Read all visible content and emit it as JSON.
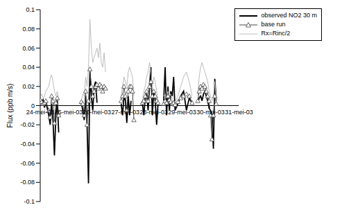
{
  "chart_data": {
    "type": "line",
    "y_label": "Flux (ppb m/s)",
    "grid": false,
    "legend": "top-right",
    "xlim": [
      24,
      31
    ],
    "xticks": [
      {
        "value": 24,
        "label": "24-mei-03"
      },
      {
        "value": 25,
        "label": "25-mei-03"
      },
      {
        "value": 26,
        "label": "26-mei-03"
      },
      {
        "value": 27,
        "label": "27-mei-03"
      },
      {
        "value": 28,
        "label": "28-mei-03"
      },
      {
        "value": 29,
        "label": "29-mei-03"
      },
      {
        "value": 30,
        "label": "30-mei-03"
      },
      {
        "value": 31,
        "label": "31-mei-03"
      }
    ],
    "ylim": [
      -0.1,
      0.1
    ],
    "yticks": [
      -0.1,
      -0.08,
      -0.06,
      -0.04,
      -0.02,
      0,
      0.02,
      0.04,
      0.06,
      0.08,
      0.1
    ],
    "x": [
      24.0,
      24.05,
      24.1,
      24.15,
      24.2,
      24.3,
      24.35,
      24.4,
      24.45,
      24.5,
      24.55,
      24.6,
      24.65,
      24.8,
      25.45,
      25.5,
      25.55,
      25.6,
      25.65,
      25.7,
      25.75,
      25.8,
      25.85,
      25.9,
      25.95,
      26.0,
      26.05,
      26.1,
      26.15,
      26.2,
      26.25,
      26.3,
      26.4,
      26.85,
      26.9,
      26.95,
      27.0,
      27.05,
      27.1,
      27.15,
      27.2,
      27.25,
      27.3,
      27.4,
      27.6,
      27.65,
      27.7,
      27.75,
      27.8,
      27.85,
      27.9,
      27.95,
      28.0,
      28.05,
      28.1,
      28.15,
      28.25,
      28.35,
      28.4,
      28.45,
      28.5,
      28.55,
      28.6,
      28.65,
      28.7,
      28.75,
      28.85,
      28.95,
      29.05,
      29.15,
      29.25,
      29.35,
      29.45,
      29.55,
      29.6,
      29.65,
      29.7,
      29.75,
      29.8,
      29.85,
      29.9,
      29.95,
      30.0,
      30.05,
      30.1,
      30.15,
      30.2
    ],
    "series": [
      {
        "name": "observed NO2 30 m",
        "color": "#000000",
        "marker": "none",
        "line_style": "solid",
        "values": [
          0.005,
          0.003,
          0.006,
          -0.002,
          0.004,
          -0.01,
          -0.02,
          0.002,
          -0.015,
          -0.052,
          -0.01,
          0.005,
          -0.028,
          null,
          0.002,
          -0.005,
          -0.015,
          0.01,
          -0.02,
          -0.081,
          0.035,
          0.01,
          -0.005,
          0.02,
          0.025,
          0.003,
          null,
          null,
          null,
          null,
          null,
          null,
          null,
          0.002,
          -0.01,
          0.01,
          0.005,
          -0.018,
          0.01,
          -0.01,
          0.005,
          null,
          null,
          null,
          0.002,
          -0.01,
          0.008,
          0.012,
          -0.005,
          0.02,
          0.04,
          -0.01,
          0.015,
          0.005,
          -0.02,
          0.002,
          null,
          0.005,
          0.04,
          -0.01,
          0.02,
          -0.005,
          0.015,
          0.01,
          0.03,
          -0.005,
          0.002,
          0.01,
          0.015,
          -0.005,
          0.008,
          0.002,
          null,
          0.003,
          0.008,
          0.01,
          0.005,
          0.012,
          0.015,
          0.01,
          0.005,
          -0.003,
          -0.005,
          -0.01,
          -0.045,
          0.028,
          0.005
        ]
      },
      {
        "name": "base run",
        "color": "#444444",
        "marker": "triangle",
        "line_style": "solid",
        "values": [
          0.006,
          0.004,
          0.002,
          0.003,
          0.005,
          -0.005,
          -0.012,
          0.01,
          0.005,
          -0.018,
          0.003,
          0.008,
          -0.01,
          null,
          0.004,
          0.002,
          -0.01,
          0.015,
          -0.02,
          0.005,
          0.038,
          0.02,
          0.01,
          0.015,
          0.02,
          0.022,
          0.018,
          0.022,
          0.02,
          0.015,
          0.02,
          0.018,
          null,
          0.005,
          0.01,
          0.02,
          0.01,
          -0.005,
          0.015,
          0.02,
          0.02,
          0.015,
          -0.015,
          null,
          0.003,
          0.005,
          0.01,
          0.015,
          0.005,
          0.02,
          0.025,
          0.01,
          0.015,
          0.01,
          0.005,
          0.003,
          null,
          0.002,
          0.005,
          0.003,
          0.01,
          0.006,
          0.004,
          0.002,
          0.003,
          0.001,
          0.004,
          0.008,
          0.01,
          0.012,
          0.01,
          0.003,
          null,
          0.005,
          0.015,
          0.02,
          0.018,
          0.022,
          0.02,
          0.015,
          0.01,
          0.005,
          -0.01,
          -0.035,
          -0.01,
          0.01,
          0.002
        ]
      },
      {
        "name": "Rx=Rinc/2",
        "color": "#bbbbbb",
        "marker": "none",
        "line_style": "solid",
        "values": [
          0.01,
          0.012,
          0.008,
          0.01,
          0.015,
          0.02,
          0.028,
          0.032,
          0.025,
          0.015,
          0.01,
          0.015,
          0.005,
          null,
          0.006,
          0.012,
          0.01,
          0.03,
          0.02,
          0.04,
          0.09,
          0.06,
          0.045,
          0.05,
          0.055,
          0.06,
          0.05,
          0.065,
          0.045,
          0.04,
          0.055,
          0.035,
          null,
          0.01,
          0.02,
          0.03,
          0.025,
          0.02,
          0.035,
          0.04,
          0.035,
          0.03,
          0.01,
          null,
          0.005,
          0.015,
          0.02,
          0.03,
          0.035,
          0.045,
          0.035,
          0.02,
          0.03,
          0.025,
          0.015,
          0.005,
          null,
          0.01,
          0.012,
          0.008,
          0.015,
          0.01,
          0.012,
          0.006,
          0.005,
          0.004,
          0.01,
          0.02,
          0.03,
          0.035,
          0.025,
          0.01,
          null,
          0.01,
          0.03,
          0.04,
          0.045,
          0.04,
          0.035,
          0.03,
          0.025,
          0.015,
          0.01,
          0.005,
          0.01,
          0.025,
          0.005
        ]
      }
    ]
  }
}
